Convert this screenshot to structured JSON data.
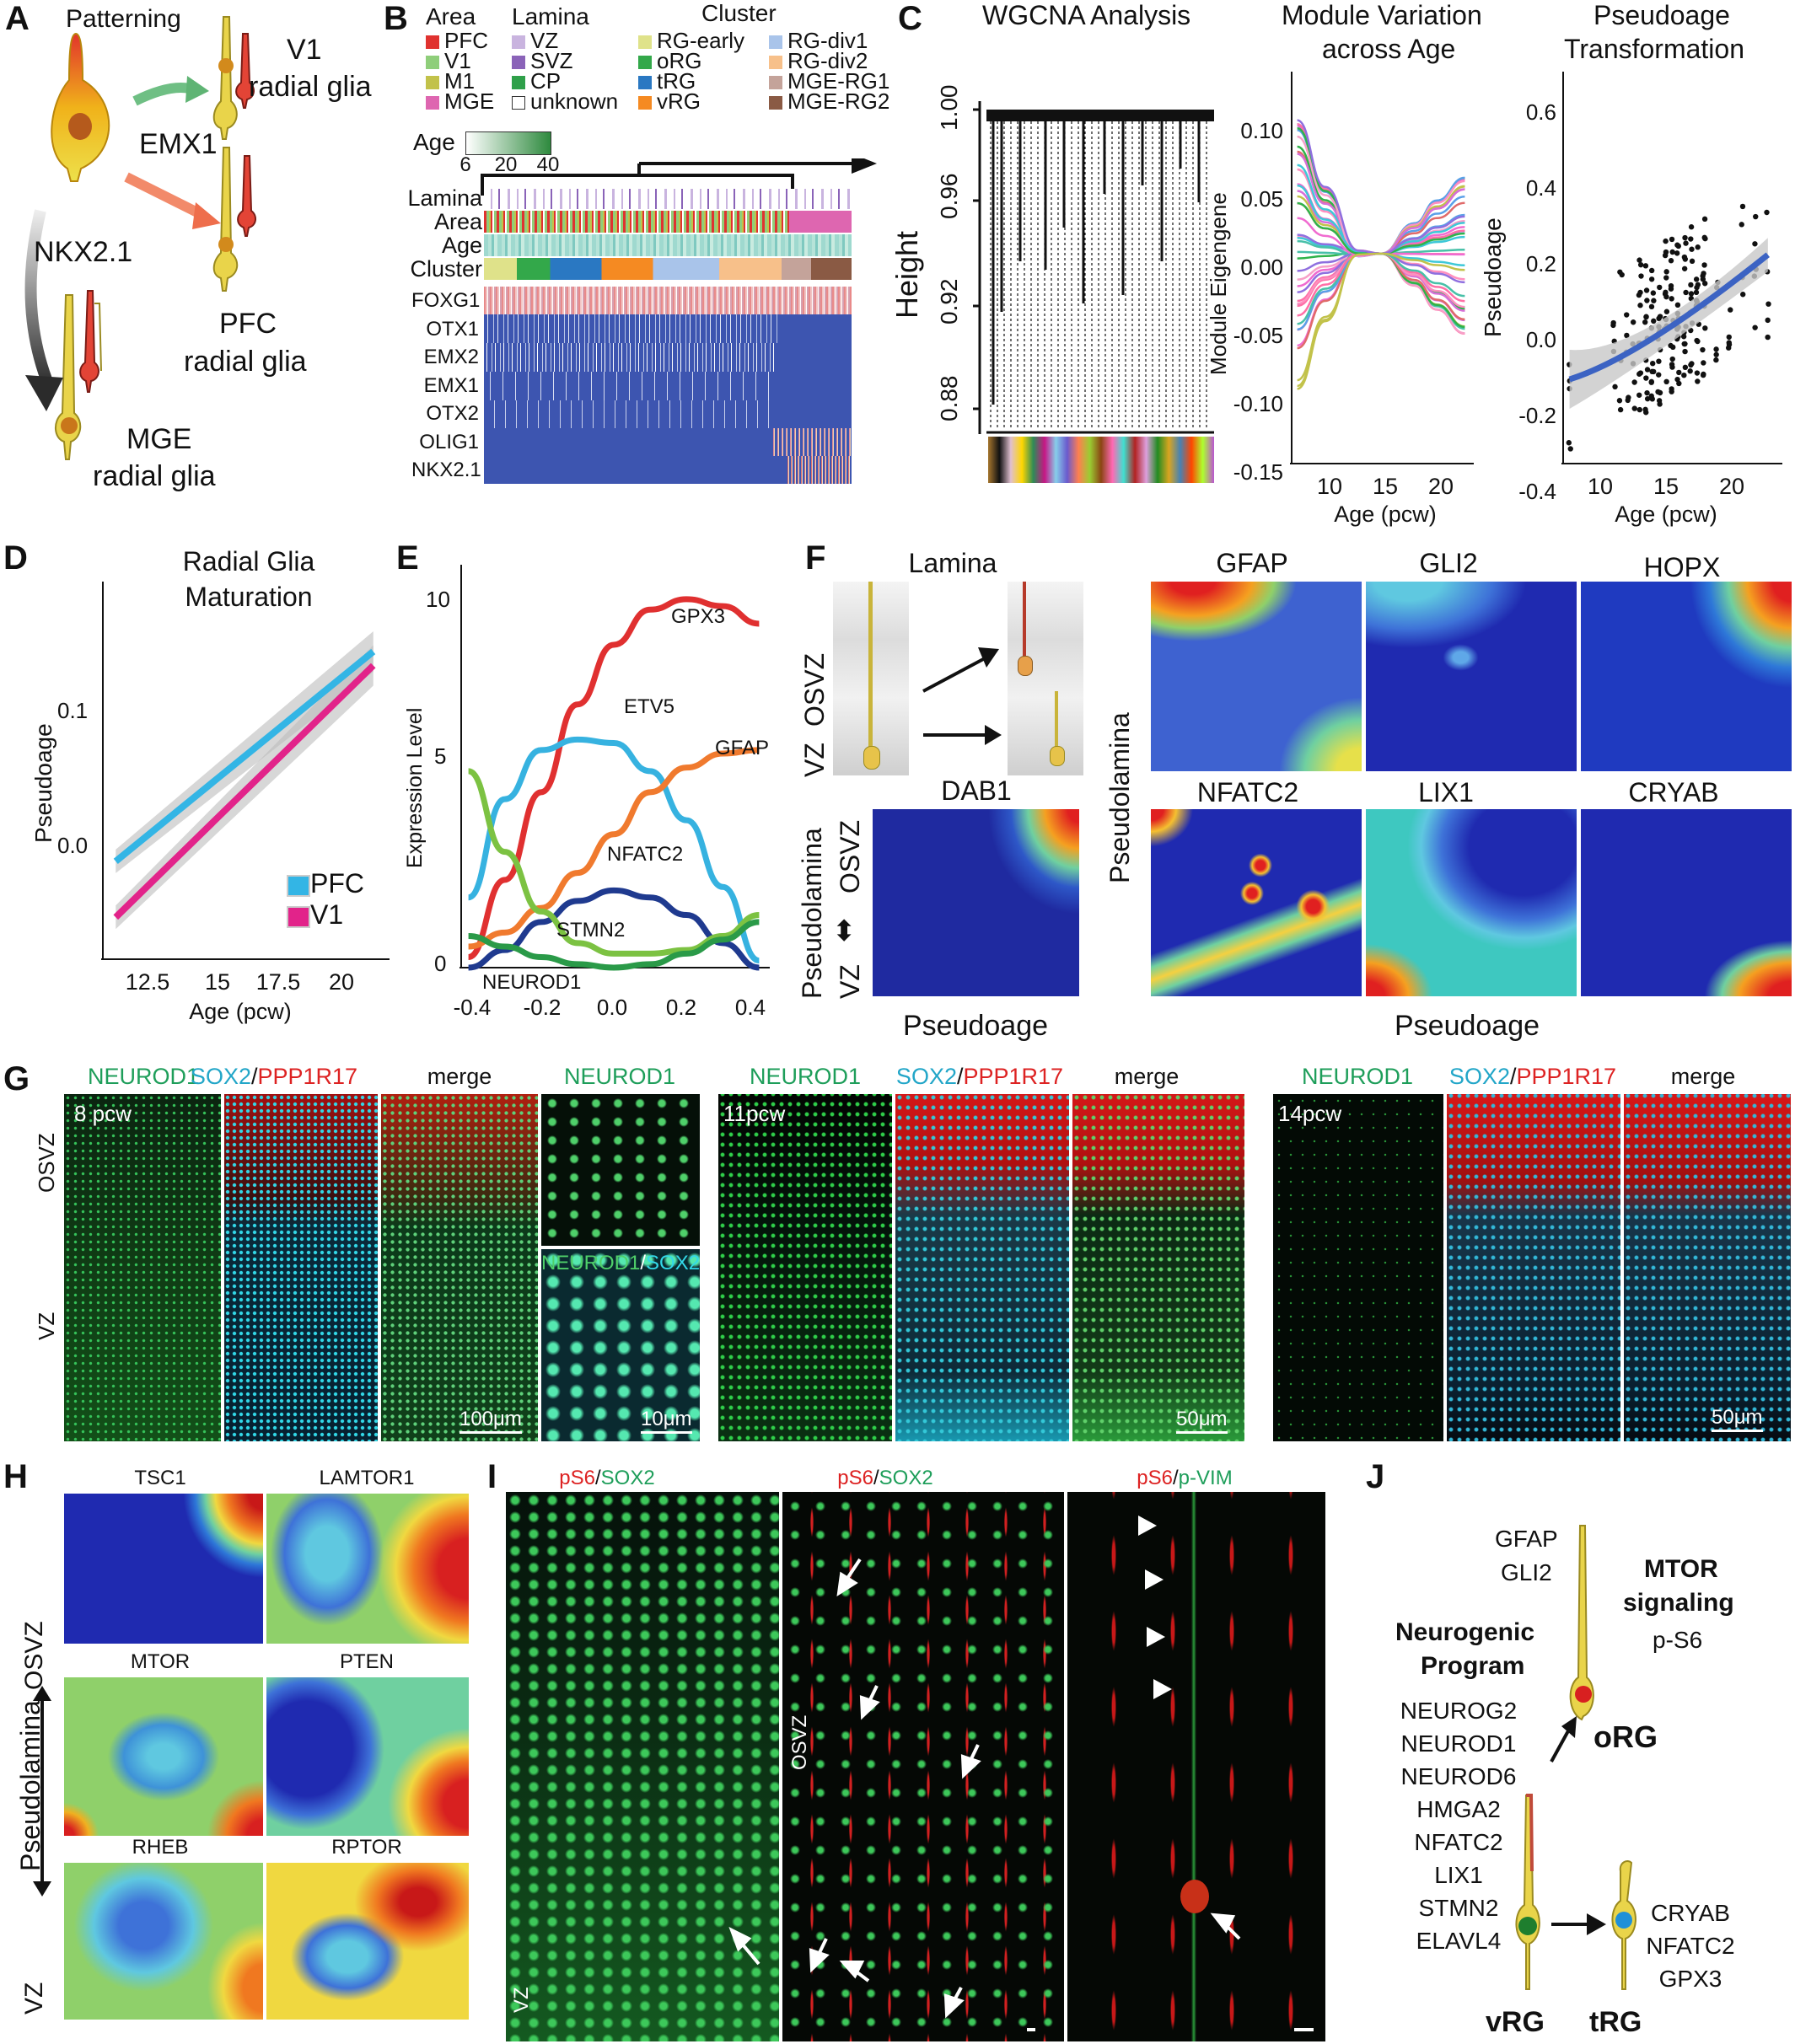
{
  "panels": {
    "A": {
      "letter": "A",
      "patterning": "Patterning",
      "v1": "V1",
      "radial_glia": "radial glia",
      "emx1": "EMX1",
      "pfc": "PFC",
      "nkx21": "NKX2.1",
      "mge": "MGE"
    },
    "B": {
      "letter": "B",
      "area_title": "Area",
      "lamina_title": "Lamina",
      "cluster_title": "Cluster",
      "area_items": [
        {
          "label": "PFC",
          "color": "#e0322f"
        },
        {
          "label": "V1",
          "color": "#8fce7a"
        },
        {
          "label": "M1",
          "color": "#c2c24a"
        },
        {
          "label": "MGE",
          "color": "#de66b0"
        }
      ],
      "lamina_items": [
        {
          "label": "VZ",
          "color": "#c9b4df"
        },
        {
          "label": "SVZ",
          "color": "#8a63b8"
        },
        {
          "label": "CP",
          "color": "#2fa04a"
        },
        {
          "label": "unknown",
          "color": "#ffffff"
        }
      ],
      "cluster_items_a": [
        {
          "label": "RG-early",
          "color": "#dfe28a"
        },
        {
          "label": "oRG",
          "color": "#33a84a"
        },
        {
          "label": "tRG",
          "color": "#2a78c2"
        },
        {
          "label": "vRG",
          "color": "#f58a22"
        }
      ],
      "cluster_items_b": [
        {
          "label": "RG-div1",
          "color": "#a9c4ea"
        },
        {
          "label": "RG-div2",
          "color": "#f7c08a"
        },
        {
          "label": "MGE-RG1",
          "color": "#c4a39a"
        },
        {
          "label": "MGE-RG2",
          "color": "#8a5a44"
        }
      ],
      "age_title": "Age",
      "age_ticks": [
        "6",
        "20",
        "40"
      ],
      "track_labels": [
        "Lamina",
        "Area",
        "Age",
        "Cluster"
      ],
      "genes": [
        "FOXG1",
        "OTX1",
        "EMX2",
        "EMX1",
        "OTX2",
        "OLIG1",
        "NKX2.1"
      ]
    },
    "C": {
      "letter": "C",
      "wgcna_title": "WGCNA Analysis",
      "height_label": "Height",
      "height_ticks": [
        "1.00",
        "0.96",
        "0.92",
        "0.88"
      ],
      "mv_title_1": "Module Variation",
      "mv_title_2": "across Age",
      "mv_ylabel": "Module Eigengene",
      "mv_yticks": [
        "0.10",
        "0.05",
        "0.00",
        "-0.05",
        "-0.10",
        "-0.15"
      ],
      "mv_xticks": [
        "10",
        "15",
        "20"
      ],
      "mv_xlabel": "Age (pcw)",
      "pt_title_1": "Pseudoage",
      "pt_title_2": "Transformation",
      "pt_ylabel": "Pseudoage",
      "pt_yticks": [
        "0.6",
        "0.4",
        "0.2",
        "0.0",
        "-0.2",
        "-0.4"
      ],
      "pt_xticks": [
        "10",
        "15",
        "20"
      ],
      "pt_xlabel": "Age (pcw)"
    },
    "D": {
      "letter": "D",
      "title_1": "Radial Glia",
      "title_2": "Maturation",
      "ylabel": "Pseudoage",
      "xlabel": "Age (pcw)",
      "yticks": [
        "0.1",
        "0.0"
      ],
      "xticks": [
        "12.5",
        "15",
        "17.5",
        "20"
      ],
      "legend": [
        "PFC",
        "V1"
      ]
    },
    "E": {
      "letter": "E",
      "ylabel": "Expression Level",
      "yticks": [
        "10",
        "5",
        "0"
      ],
      "xticks": [
        "-0.4",
        "-0.2",
        "0.0",
        "0.2",
        "0.4"
      ],
      "genes": [
        "GPX3",
        "ETV5",
        "GFAP",
        "NFATC2",
        "STMN2",
        "NEUROD1"
      ]
    },
    "F": {
      "letter": "F",
      "lamina": "Lamina",
      "osvz": "OSVZ",
      "vz": "VZ",
      "pseudolamina": "Pseudolamina",
      "pseudoage": "Pseudoage",
      "maps": [
        "DAB1",
        "GFAP",
        "GLI2",
        "HOPX",
        "NFATC2",
        "LIX1",
        "CRYAB"
      ]
    },
    "G": {
      "letter": "G",
      "neurod1": "NEUROD1",
      "sox2": "SOX2",
      "slash": "/",
      "ppp1r17": "PPP1R17",
      "merge": "merge",
      "ages": [
        "8 pcw",
        "11pcw",
        "14pcw"
      ],
      "osvz": "OSVZ",
      "vz": "VZ",
      "scale_100": "100μm",
      "scale_10": "10μm",
      "scale_50a": "50μm",
      "scale_50b": "50μm",
      "inset_label_a": "NEUROD1",
      "inset_label_b": "SOX2"
    },
    "H": {
      "letter": "H",
      "maps": [
        "TSC1",
        "LAMTOR1",
        "MTOR",
        "PTEN",
        "RHEB",
        "RPTOR"
      ],
      "osvz": "OSVZ",
      "pseudolamina": "Pseudolamina",
      "vz": "VZ"
    },
    "I": {
      "letter": "I",
      "ps6": "pS6",
      "sox2": "SOX2",
      "pvim": "p-VIM",
      "slash": "/",
      "osvz": "OSVZ",
      "vz": "VZ"
    },
    "J": {
      "letter": "J",
      "gfap": "GFAP",
      "gli2": "GLI2",
      "mtor_1": "MTOR",
      "mtor_2": "signaling",
      "ps6": "p-S6",
      "neuro_1": "Neurogenic",
      "neuro_2": "Program",
      "genes": [
        "NEUROG2",
        "NEUROD1",
        "NEUROD6",
        "HMGA2",
        "NFATC2",
        "LIX1",
        "STMN2",
        "ELAVL4"
      ],
      "org": "oRG",
      "trg_genes": [
        "CRYAB",
        "NFATC2",
        "GPX3"
      ],
      "vrg": "vRG",
      "trg": "tRG"
    }
  },
  "chart_data": [
    {
      "type": "line",
      "title": "Radial Glia Maturation",
      "xlabel": "Age (pcw)",
      "ylabel": "Pseudoage",
      "series": [
        {
          "name": "PFC",
          "x": [
            11,
            21
          ],
          "values": [
            -0.02,
            0.13
          ],
          "color": "#33b5e5"
        },
        {
          "name": "V1",
          "x": [
            11,
            21
          ],
          "values": [
            -0.06,
            0.12
          ],
          "color": "#e2238a"
        }
      ],
      "xlim": [
        10.5,
        21.5
      ],
      "ylim": [
        -0.09,
        0.18
      ]
    },
    {
      "type": "line",
      "xlabel": "",
      "ylabel": "Expression Level",
      "x": [
        -0.4,
        -0.3,
        -0.2,
        -0.1,
        0.0,
        0.1,
        0.2,
        0.3,
        0.4
      ],
      "series": [
        {
          "name": "GPX3",
          "values": [
            0.3,
            2.5,
            5.0,
            7.5,
            9.2,
            10.2,
            10.5,
            10.3,
            9.8
          ],
          "color": "#e03030"
        },
        {
          "name": "ETV5",
          "values": [
            2.0,
            4.8,
            6.2,
            6.5,
            6.4,
            5.6,
            4.2,
            2.3,
            0.2
          ],
          "color": "#36b2e0"
        },
        {
          "name": "GFAP",
          "values": [
            0.6,
            1.0,
            1.7,
            2.7,
            3.8,
            5.0,
            5.7,
            6.1,
            6.2
          ],
          "color": "#f07a2e"
        },
        {
          "name": "NFATC2",
          "values": [
            0.0,
            0.5,
            1.3,
            1.9,
            2.2,
            2.0,
            1.5,
            0.7,
            0.0
          ],
          "color": "#1f3a8f"
        },
        {
          "name": "STMN2",
          "values": [
            5.6,
            3.3,
            1.6,
            0.7,
            0.4,
            0.4,
            0.5,
            0.9,
            1.5
          ],
          "color": "#7cc242"
        },
        {
          "name": "NEUROD1",
          "values": [
            0.9,
            0.6,
            0.3,
            0.1,
            0.0,
            0.1,
            0.4,
            0.8,
            1.3
          ],
          "color": "#2a9a48"
        }
      ],
      "xlim": [
        -0.42,
        0.42
      ],
      "ylim": [
        0,
        11
      ]
    },
    {
      "type": "scatter",
      "title": "Pseudoage Transformation",
      "xlabel": "Age (pcw)",
      "ylabel": "Pseudoage",
      "trend": {
        "x": [
          6.5,
          22
        ],
        "values": [
          -0.19,
          0.15
        ],
        "color": "#3c63c3"
      },
      "xlim": [
        6,
        23
      ],
      "ylim": [
        -0.42,
        0.65
      ]
    },
    {
      "type": "line",
      "title": "Module Variation across Age",
      "xlabel": "Age (pcw)",
      "ylabel": "Module Eigengene",
      "xlim": [
        7,
        23
      ],
      "ylim": [
        -0.15,
        0.13
      ]
    }
  ]
}
